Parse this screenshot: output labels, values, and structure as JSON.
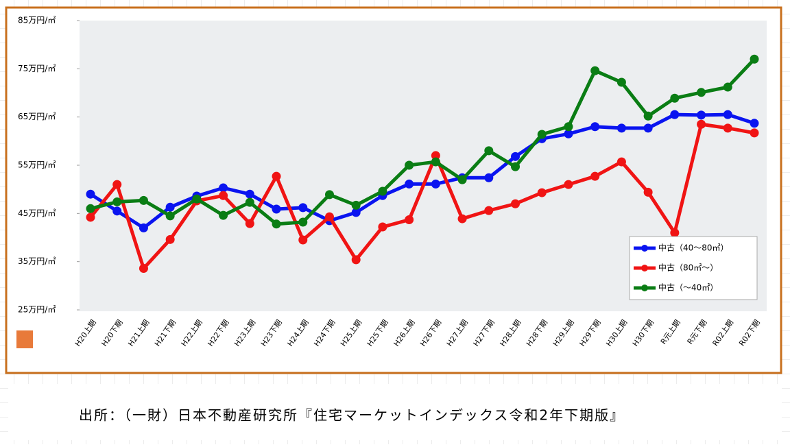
{
  "chart_data": {
    "type": "line",
    "categories": [
      "H20上期",
      "H20下期",
      "H21上期",
      "H21下期",
      "H22上期",
      "H22下期",
      "H23上期",
      "H23下期",
      "H24上期",
      "H24下期",
      "H25上期",
      "H25下期",
      "H26上期",
      "H26下期",
      "H27上期",
      "H27下期",
      "H28上期",
      "H28下期",
      "H29上期",
      "H29下期",
      "H30上期",
      "H30下期",
      "R元上期",
      "R元下期",
      "R02上期",
      "R02下期"
    ],
    "series": [
      {
        "name": "中古（40～80㎡）",
        "color": "#0a14f0",
        "values": [
          49,
          45.5,
          42,
          46.3,
          48.6,
          50.3,
          49,
          45.9,
          46.2,
          43.5,
          45.2,
          48.7,
          51.1,
          51.1,
          52.4,
          52.4,
          56.8,
          60.5,
          61.5,
          63,
          62.7,
          62.7,
          65.5,
          65.4,
          65.5,
          63.7
        ]
      },
      {
        "name": "中古（80㎡～）",
        "color": "#f01414",
        "values": [
          44.2,
          51,
          33.6,
          39.6,
          47.6,
          48.7,
          42.9,
          52.7,
          39.5,
          44.3,
          35.4,
          42.2,
          43.7,
          57,
          43.9,
          45.6,
          47,
          49.3,
          51,
          52.7,
          55.7,
          49.4,
          41,
          63.5,
          62.7,
          61.7
        ]
      },
      {
        "name": "中古（～40㎡）",
        "color": "#0a7d14",
        "values": [
          46,
          47.4,
          47.7,
          44.5,
          48,
          44.6,
          47.3,
          42.8,
          43.2,
          48.9,
          46.7,
          49.6,
          55,
          55.7,
          52,
          58,
          54.7,
          61.4,
          63,
          74.6,
          72.2,
          65.2,
          68.9,
          70.1,
          71.2,
          77
        ]
      }
    ],
    "ylim": [
      25,
      85
    ],
    "yticks": [
      {
        "value": 25,
        "label": "25万円/㎡"
      },
      {
        "value": 35,
        "label": "35万円/㎡"
      },
      {
        "value": 45,
        "label": "45万円/㎡"
      },
      {
        "value": 55,
        "label": "55万円/㎡"
      },
      {
        "value": 65,
        "label": "65万円/㎡"
      },
      {
        "value": 75,
        "label": "75万円/㎡"
      },
      {
        "value": 85,
        "label": "85万円/㎡"
      }
    ],
    "legend": "lower right",
    "source": "出所：（一財）日本不動産研究所『住宅マーケットインデックス令和2年下期版』"
  }
}
